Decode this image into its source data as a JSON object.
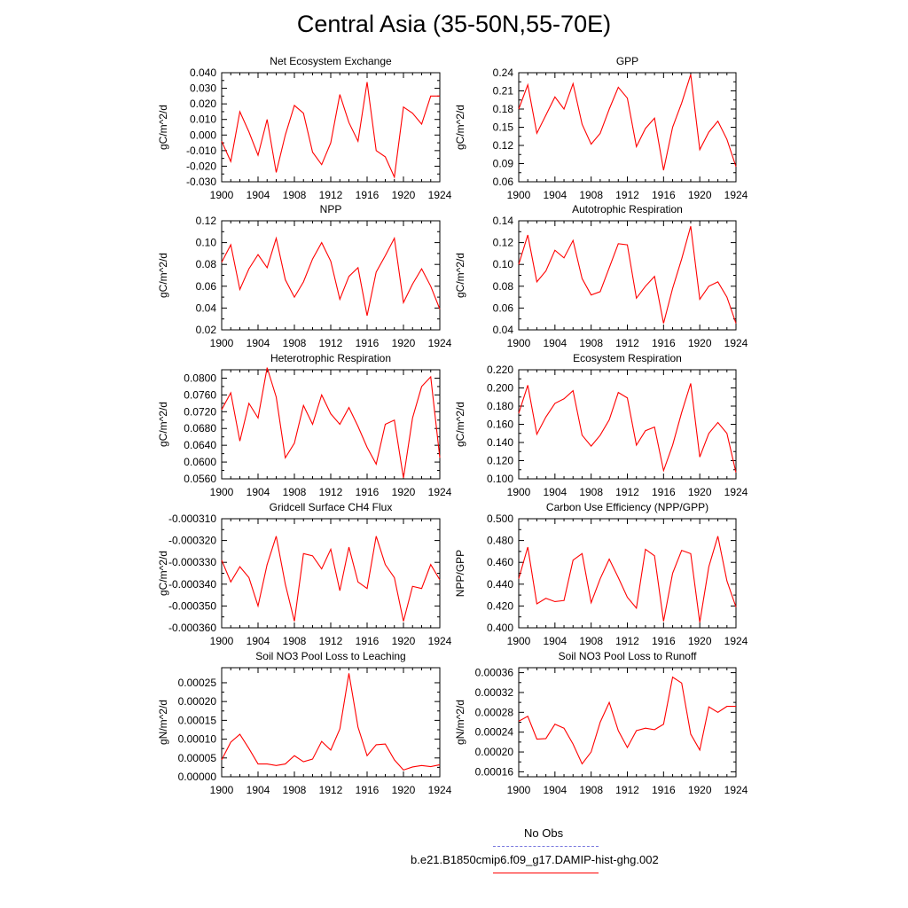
{
  "page": {
    "title": "Central Asia (35-50N,55-70E)"
  },
  "legend": {
    "entries": [
      {
        "label": "No Obs",
        "color": "#7777dd",
        "style": "dashed"
      },
      {
        "label": "b.e21.B1850cmip6.f09_g17.DAMIP-hist-ghg.002",
        "color": "#ff0000",
        "style": "solid"
      }
    ]
  },
  "chart_data": [
    {
      "type": "line",
      "title": "Net Ecosystem Exchange",
      "ylabel": "gC/m^2/d",
      "xlim": [
        1900,
        1924
      ],
      "ylim": [
        -0.03,
        0.04
      ],
      "xticks": [
        1900,
        1904,
        1908,
        1912,
        1916,
        1920,
        1924
      ],
      "yticks": [
        "-0.030",
        "-0.020",
        "-0.010",
        "0.000",
        "0.010",
        "0.020",
        "0.030",
        "0.040"
      ],
      "series": [
        {
          "color": "#ff0000",
          "x": [
            1900,
            1901,
            1902,
            1903,
            1904,
            1905,
            1906,
            1907,
            1908,
            1909,
            1910,
            1911,
            1912,
            1913,
            1914,
            1915,
            1916,
            1917,
            1918,
            1919,
            1920,
            1921,
            1922,
            1923,
            1924
          ],
          "values": [
            -0.004,
            -0.017,
            0.015,
            0.002,
            -0.013,
            0.01,
            -0.024,
            0.0,
            0.019,
            0.014,
            -0.011,
            -0.019,
            -0.005,
            0.026,
            0.008,
            -0.004,
            0.034,
            -0.01,
            -0.014,
            -0.027,
            0.018,
            0.014,
            0.007,
            0.025,
            0.025
          ]
        }
      ]
    },
    {
      "type": "line",
      "title": "GPP",
      "ylabel": "gC/m^2/d",
      "xlim": [
        1900,
        1924
      ],
      "ylim": [
        0.06,
        0.24
      ],
      "xticks": [
        1900,
        1904,
        1908,
        1912,
        1916,
        1920,
        1924
      ],
      "yticks": [
        "0.06",
        "0.09",
        "0.12",
        "0.15",
        "0.18",
        "0.21",
        "0.24"
      ],
      "series": [
        {
          "color": "#ff0000",
          "x": [
            1900,
            1901,
            1902,
            1903,
            1904,
            1905,
            1906,
            1907,
            1908,
            1909,
            1910,
            1911,
            1912,
            1913,
            1914,
            1915,
            1916,
            1917,
            1918,
            1919,
            1920,
            1921,
            1922,
            1923,
            1924
          ],
          "values": [
            0.18,
            0.22,
            0.14,
            0.17,
            0.2,
            0.18,
            0.222,
            0.155,
            0.122,
            0.14,
            0.18,
            0.216,
            0.198,
            0.118,
            0.148,
            0.165,
            0.079,
            0.15,
            0.19,
            0.237,
            0.113,
            0.142,
            0.16,
            0.13,
            0.085
          ]
        }
      ]
    },
    {
      "type": "line",
      "title": "NPP",
      "ylabel": "gC/m^2/d",
      "xlim": [
        1900,
        1924
      ],
      "ylim": [
        0.02,
        0.12
      ],
      "xticks": [
        1900,
        1904,
        1908,
        1912,
        1916,
        1920,
        1924
      ],
      "yticks": [
        "0.02",
        "0.04",
        "0.06",
        "0.08",
        "0.10",
        "0.12"
      ],
      "series": [
        {
          "color": "#ff0000",
          "x": [
            1900,
            1901,
            1902,
            1903,
            1904,
            1905,
            1906,
            1907,
            1908,
            1909,
            1910,
            1911,
            1912,
            1913,
            1914,
            1915,
            1916,
            1917,
            1918,
            1919,
            1920,
            1921,
            1922,
            1923,
            1924
          ],
          "values": [
            0.082,
            0.098,
            0.057,
            0.076,
            0.089,
            0.077,
            0.104,
            0.066,
            0.05,
            0.064,
            0.085,
            0.1,
            0.083,
            0.048,
            0.069,
            0.077,
            0.033,
            0.073,
            0.088,
            0.104,
            0.045,
            0.062,
            0.076,
            0.06,
            0.039
          ]
        }
      ]
    },
    {
      "type": "line",
      "title": "Autotrophic Respiration",
      "ylabel": "gC/m^2/d",
      "xlim": [
        1900,
        1924
      ],
      "ylim": [
        0.04,
        0.14
      ],
      "xticks": [
        1900,
        1904,
        1908,
        1912,
        1916,
        1920,
        1924
      ],
      "yticks": [
        "0.04",
        "0.06",
        "0.08",
        "0.10",
        "0.12",
        "0.14"
      ],
      "series": [
        {
          "color": "#ff0000",
          "x": [
            1900,
            1901,
            1902,
            1903,
            1904,
            1905,
            1906,
            1907,
            1908,
            1909,
            1910,
            1911,
            1912,
            1913,
            1914,
            1915,
            1916,
            1917,
            1918,
            1919,
            1920,
            1921,
            1922,
            1923,
            1924
          ],
          "values": [
            0.1,
            0.127,
            0.084,
            0.094,
            0.113,
            0.106,
            0.122,
            0.087,
            0.072,
            0.075,
            0.097,
            0.119,
            0.118,
            0.069,
            0.08,
            0.089,
            0.046,
            0.078,
            0.105,
            0.135,
            0.068,
            0.08,
            0.084,
            0.07,
            0.046
          ]
        }
      ]
    },
    {
      "type": "line",
      "title": "Heterotrophic Respiration",
      "ylabel": "gC/m^2/d",
      "xlim": [
        1900,
        1924
      ],
      "ylim": [
        0.056,
        0.082
      ],
      "xticks": [
        1900,
        1904,
        1908,
        1912,
        1916,
        1920,
        1924
      ],
      "yticks": [
        "0.0560",
        "0.0600",
        "0.0640",
        "0.0680",
        "0.0720",
        "0.0760",
        "0.0800"
      ],
      "series": [
        {
          "color": "#ff0000",
          "x": [
            1900,
            1901,
            1902,
            1903,
            1904,
            1905,
            1906,
            1907,
            1908,
            1909,
            1910,
            1911,
            1912,
            1913,
            1914,
            1915,
            1916,
            1917,
            1918,
            1919,
            1920,
            1921,
            1922,
            1923,
            1924
          ],
          "values": [
            0.0725,
            0.0765,
            0.065,
            0.074,
            0.0705,
            0.0825,
            0.0755,
            0.061,
            0.0645,
            0.0735,
            0.069,
            0.076,
            0.0715,
            0.069,
            0.073,
            0.0685,
            0.0635,
            0.0595,
            0.069,
            0.07,
            0.0562,
            0.0705,
            0.078,
            0.0803,
            0.061
          ]
        }
      ]
    },
    {
      "type": "line",
      "title": "Ecosystem Respiration",
      "ylabel": "gC/m^2/d",
      "xlim": [
        1900,
        1924
      ],
      "ylim": [
        0.1,
        0.22
      ],
      "xticks": [
        1900,
        1904,
        1908,
        1912,
        1916,
        1920,
        1924
      ],
      "yticks": [
        "0.100",
        "0.120",
        "0.140",
        "0.160",
        "0.180",
        "0.200",
        "0.220"
      ],
      "series": [
        {
          "color": "#ff0000",
          "x": [
            1900,
            1901,
            1902,
            1903,
            1904,
            1905,
            1906,
            1907,
            1908,
            1909,
            1910,
            1911,
            1912,
            1913,
            1914,
            1915,
            1916,
            1917,
            1918,
            1919,
            1920,
            1921,
            1922,
            1923,
            1924
          ],
          "values": [
            0.172,
            0.203,
            0.149,
            0.168,
            0.183,
            0.188,
            0.197,
            0.148,
            0.136,
            0.148,
            0.165,
            0.195,
            0.189,
            0.137,
            0.153,
            0.157,
            0.109,
            0.137,
            0.173,
            0.205,
            0.124,
            0.15,
            0.162,
            0.15,
            0.107
          ]
        }
      ]
    },
    {
      "type": "line",
      "title": "Gridcell Surface CH4 Flux",
      "ylabel": "gC/m^2/d",
      "xlim": [
        1900,
        1924
      ],
      "ylim": [
        -0.00036,
        -0.00031
      ],
      "xticks": [
        1900,
        1904,
        1908,
        1912,
        1916,
        1920,
        1924
      ],
      "yticks": [
        "-0.000360",
        "-0.000350",
        "-0.000340",
        "-0.000330",
        "-0.000320",
        "-0.000310"
      ],
      "series": [
        {
          "color": "#ff0000",
          "x": [
            1900,
            1901,
            1902,
            1903,
            1904,
            1905,
            1906,
            1907,
            1908,
            1909,
            1910,
            1911,
            1912,
            1913,
            1914,
            1915,
            1916,
            1917,
            1918,
            1919,
            1920,
            1921,
            1922,
            1923,
            1924
          ],
          "values": [
            -0.000329,
            -0.000339,
            -0.000332,
            -0.000337,
            -0.00035,
            -0.000331,
            -0.000318,
            -0.00034,
            -0.000357,
            -0.000326,
            -0.000327,
            -0.000333,
            -0.000324,
            -0.000343,
            -0.000323,
            -0.000339,
            -0.000342,
            -0.000318,
            -0.000331,
            -0.000337,
            -0.000357,
            -0.000341,
            -0.000342,
            -0.000331,
            -0.000338
          ]
        }
      ]
    },
    {
      "type": "line",
      "title": "Carbon Use Efficiency (NPP/GPP)",
      "ylabel": "NPP/GPP",
      "xlim": [
        1900,
        1924
      ],
      "ylim": [
        0.4,
        0.5
      ],
      "xticks": [
        1900,
        1904,
        1908,
        1912,
        1916,
        1920,
        1924
      ],
      "yticks": [
        "0.400",
        "0.420",
        "0.440",
        "0.460",
        "0.480",
        "0.500"
      ],
      "series": [
        {
          "color": "#ff0000",
          "x": [
            1900,
            1901,
            1902,
            1903,
            1904,
            1905,
            1906,
            1907,
            1908,
            1909,
            1910,
            1911,
            1912,
            1913,
            1914,
            1915,
            1916,
            1917,
            1918,
            1919,
            1920,
            1921,
            1922,
            1923,
            1924
          ],
          "values": [
            0.445,
            0.474,
            0.422,
            0.427,
            0.424,
            0.425,
            0.462,
            0.468,
            0.423,
            0.445,
            0.463,
            0.446,
            0.428,
            0.418,
            0.472,
            0.466,
            0.406,
            0.45,
            0.471,
            0.468,
            0.405,
            0.456,
            0.484,
            0.443,
            0.419
          ]
        }
      ]
    },
    {
      "type": "line",
      "title": "Soil NO3 Pool Loss to Leaching",
      "ylabel": "gN/m^2/d",
      "xlim": [
        1900,
        1924
      ],
      "ylim": [
        0,
        0.00029
      ],
      "xticks": [
        1900,
        1904,
        1908,
        1912,
        1916,
        1920,
        1924
      ],
      "yticks": [
        "0.00000",
        "0.00005",
        "0.00010",
        "0.00015",
        "0.00020",
        "0.00025"
      ],
      "series": [
        {
          "color": "#ff0000",
          "x": [
            1900,
            1901,
            1902,
            1903,
            1904,
            1905,
            1906,
            1907,
            1908,
            1909,
            1910,
            1911,
            1912,
            1913,
            1914,
            1915,
            1916,
            1917,
            1918,
            1919,
            1920,
            1921,
            1922,
            1923,
            1924
          ],
          "values": [
            4.5e-05,
            9.2e-05,
            0.000113,
            7.5e-05,
            3.4e-05,
            3.4e-05,
            3e-05,
            3.4e-05,
            5.6e-05,
            4e-05,
            4.7e-05,
            9.4e-05,
            7.1e-05,
            0.000127,
            0.000275,
            0.000132,
            5.6e-05,
            8.5e-05,
            8.7e-05,
            4.5e-05,
            1.8e-05,
            2.6e-05,
            3e-05,
            2.7e-05,
            3.2e-05
          ]
        }
      ]
    },
    {
      "type": "line",
      "title": "Soil NO3 Pool Loss to Runoff",
      "ylabel": "gN/m^2/d",
      "xlim": [
        1900,
        1924
      ],
      "ylim": [
        0.00015,
        0.00037
      ],
      "xticks": [
        1900,
        1904,
        1908,
        1912,
        1916,
        1920,
        1924
      ],
      "yticks": [
        "0.00016",
        "0.00020",
        "0.00024",
        "0.00028",
        "0.00032",
        "0.00036"
      ],
      "series": [
        {
          "color": "#ff0000",
          "x": [
            1900,
            1901,
            1902,
            1903,
            1904,
            1905,
            1906,
            1907,
            1908,
            1909,
            1910,
            1911,
            1912,
            1913,
            1914,
            1915,
            1916,
            1917,
            1918,
            1919,
            1920,
            1921,
            1922,
            1923,
            1924
          ],
          "values": [
            0.000262,
            0.000272,
            0.000226,
            0.000227,
            0.000256,
            0.000248,
            0.000216,
            0.000176,
            0.0002,
            0.00026,
            0.0003,
            0.000243,
            0.000209,
            0.000243,
            0.000248,
            0.000245,
            0.000256,
            0.000351,
            0.000339,
            0.000236,
            0.000204,
            0.000291,
            0.00028,
            0.000292,
            0.000292
          ]
        }
      ]
    }
  ]
}
